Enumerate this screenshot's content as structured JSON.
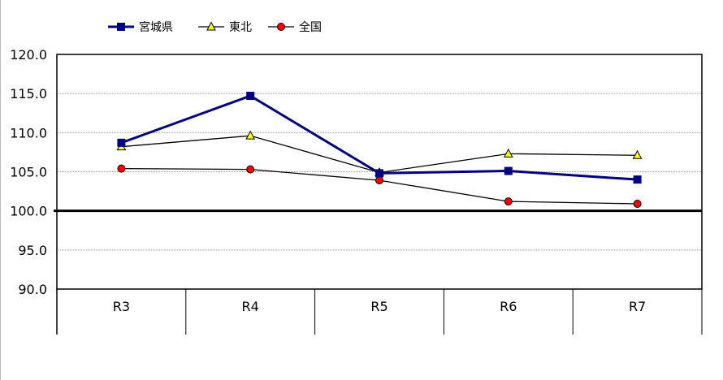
{
  "chart_data": {
    "type": "line",
    "categories": [
      "R3",
      "R4",
      "R5",
      "R6",
      "R7"
    ],
    "series": [
      {
        "name": "宮城県",
        "values": [
          108.7,
          114.7,
          104.8,
          105.1,
          104.0
        ],
        "color": "#000080",
        "marker": "square"
      },
      {
        "name": "東北",
        "values": [
          108.2,
          109.6,
          104.9,
          107.3,
          107.1
        ],
        "color": "#000000",
        "marker": "triangle",
        "marker_fill": "#ffff00"
      },
      {
        "name": "全国",
        "values": [
          105.4,
          105.3,
          103.9,
          101.2,
          100.9
        ],
        "color": "#000000",
        "marker": "circle",
        "marker_fill": "#ff0000"
      }
    ],
    "ylim": [
      90,
      120
    ],
    "yticks": [
      "90.0",
      "95.0",
      "100.0",
      "105.0",
      "110.0",
      "115.0",
      "120.0"
    ],
    "reference_line": 100,
    "grid": true,
    "legend_position": "top-left"
  }
}
